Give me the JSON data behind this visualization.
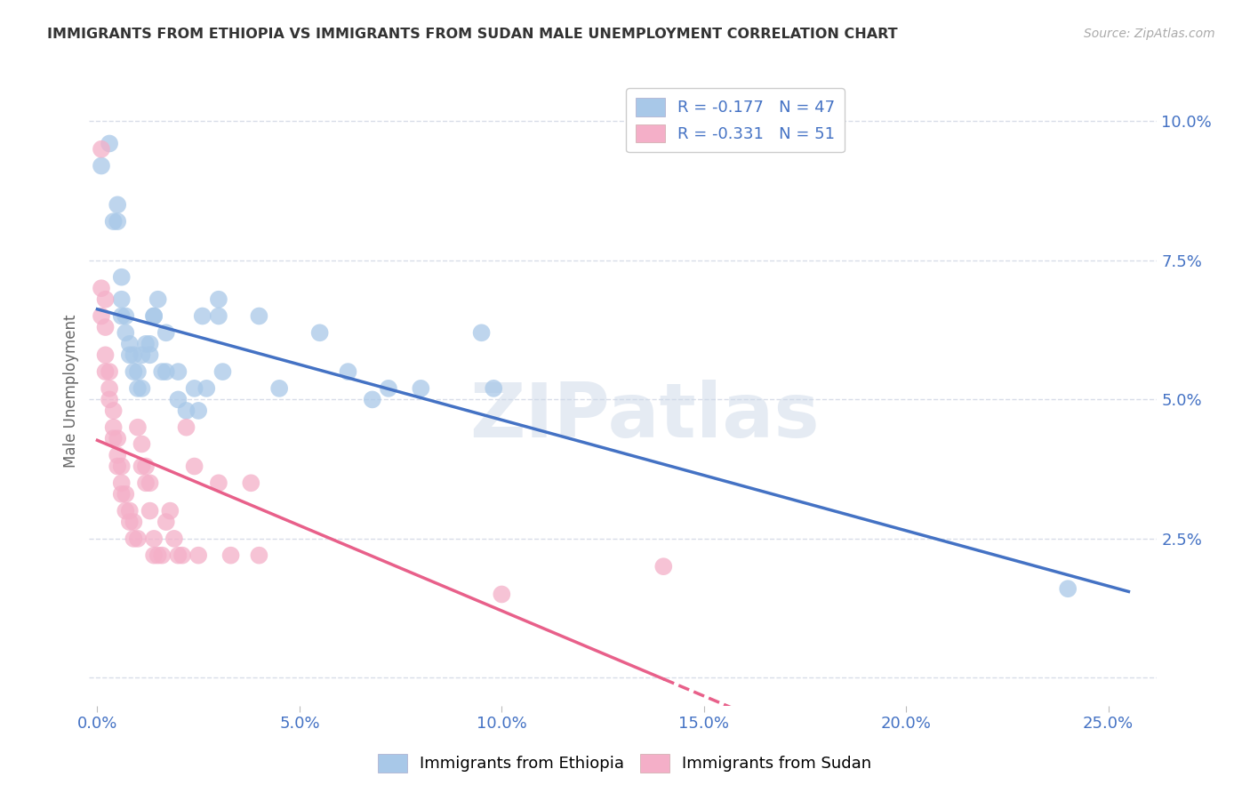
{
  "title": "IMMIGRANTS FROM ETHIOPIA VS IMMIGRANTS FROM SUDAN MALE UNEMPLOYMENT CORRELATION CHART",
  "source": "Source: ZipAtlas.com",
  "ylabel": "Male Unemployment",
  "xlim": [
    -0.002,
    0.262
  ],
  "ylim": [
    -0.005,
    0.108
  ],
  "x_ticks": [
    0.0,
    0.05,
    0.1,
    0.15,
    0.2,
    0.25
  ],
  "x_tick_labels": [
    "0.0%",
    "5.0%",
    "10.0%",
    "15.0%",
    "20.0%",
    "25.0%"
  ],
  "y_ticks": [
    0.0,
    0.025,
    0.05,
    0.075,
    0.1
  ],
  "y_tick_labels": [
    "",
    "2.5%",
    "5.0%",
    "7.5%",
    "10.0%"
  ],
  "legend_labels": [
    "Immigrants from Ethiopia",
    "Immigrants from Sudan"
  ],
  "legend_R": [
    -0.177,
    -0.331
  ],
  "legend_N": [
    47,
    51
  ],
  "ethiopia_color": "#a8c8e8",
  "sudan_color": "#f4afc8",
  "ethiopia_line_color": "#4472c4",
  "sudan_line_color": "#e8608a",
  "ethiopia_scatter": [
    [
      0.001,
      0.092
    ],
    [
      0.003,
      0.096
    ],
    [
      0.004,
      0.082
    ],
    [
      0.005,
      0.085
    ],
    [
      0.005,
      0.082
    ],
    [
      0.006,
      0.072
    ],
    [
      0.006,
      0.068
    ],
    [
      0.006,
      0.065
    ],
    [
      0.007,
      0.065
    ],
    [
      0.007,
      0.062
    ],
    [
      0.008,
      0.06
    ],
    [
      0.008,
      0.058
    ],
    [
      0.009,
      0.058
    ],
    [
      0.009,
      0.055
    ],
    [
      0.01,
      0.055
    ],
    [
      0.01,
      0.052
    ],
    [
      0.011,
      0.052
    ],
    [
      0.011,
      0.058
    ],
    [
      0.012,
      0.06
    ],
    [
      0.013,
      0.06
    ],
    [
      0.013,
      0.058
    ],
    [
      0.014,
      0.065
    ],
    [
      0.014,
      0.065
    ],
    [
      0.015,
      0.068
    ],
    [
      0.016,
      0.055
    ],
    [
      0.017,
      0.062
    ],
    [
      0.017,
      0.055
    ],
    [
      0.02,
      0.055
    ],
    [
      0.02,
      0.05
    ],
    [
      0.022,
      0.048
    ],
    [
      0.024,
      0.052
    ],
    [
      0.025,
      0.048
    ],
    [
      0.026,
      0.065
    ],
    [
      0.027,
      0.052
    ],
    [
      0.03,
      0.068
    ],
    [
      0.03,
      0.065
    ],
    [
      0.031,
      0.055
    ],
    [
      0.04,
      0.065
    ],
    [
      0.045,
      0.052
    ],
    [
      0.055,
      0.062
    ],
    [
      0.062,
      0.055
    ],
    [
      0.068,
      0.05
    ],
    [
      0.072,
      0.052
    ],
    [
      0.08,
      0.052
    ],
    [
      0.095,
      0.062
    ],
    [
      0.098,
      0.052
    ],
    [
      0.24,
      0.016
    ]
  ],
  "sudan_scatter": [
    [
      0.001,
      0.095
    ],
    [
      0.001,
      0.07
    ],
    [
      0.001,
      0.065
    ],
    [
      0.002,
      0.068
    ],
    [
      0.002,
      0.063
    ],
    [
      0.002,
      0.058
    ],
    [
      0.002,
      0.055
    ],
    [
      0.003,
      0.055
    ],
    [
      0.003,
      0.052
    ],
    [
      0.003,
      0.05
    ],
    [
      0.004,
      0.048
    ],
    [
      0.004,
      0.045
    ],
    [
      0.004,
      0.043
    ],
    [
      0.005,
      0.043
    ],
    [
      0.005,
      0.04
    ],
    [
      0.005,
      0.038
    ],
    [
      0.006,
      0.038
    ],
    [
      0.006,
      0.035
    ],
    [
      0.006,
      0.033
    ],
    [
      0.007,
      0.033
    ],
    [
      0.007,
      0.03
    ],
    [
      0.008,
      0.03
    ],
    [
      0.008,
      0.028
    ],
    [
      0.009,
      0.028
    ],
    [
      0.009,
      0.025
    ],
    [
      0.01,
      0.025
    ],
    [
      0.01,
      0.045
    ],
    [
      0.011,
      0.042
    ],
    [
      0.011,
      0.038
    ],
    [
      0.012,
      0.038
    ],
    [
      0.012,
      0.035
    ],
    [
      0.013,
      0.035
    ],
    [
      0.013,
      0.03
    ],
    [
      0.014,
      0.022
    ],
    [
      0.014,
      0.025
    ],
    [
      0.015,
      0.022
    ],
    [
      0.016,
      0.022
    ],
    [
      0.017,
      0.028
    ],
    [
      0.018,
      0.03
    ],
    [
      0.019,
      0.025
    ],
    [
      0.02,
      0.022
    ],
    [
      0.021,
      0.022
    ],
    [
      0.022,
      0.045
    ],
    [
      0.024,
      0.038
    ],
    [
      0.025,
      0.022
    ],
    [
      0.03,
      0.035
    ],
    [
      0.033,
      0.022
    ],
    [
      0.038,
      0.035
    ],
    [
      0.04,
      0.022
    ],
    [
      0.1,
      0.015
    ],
    [
      0.14,
      0.02
    ]
  ],
  "watermark_text": "ZIPatlas",
  "background_color": "#ffffff",
  "grid_color": "#d8dde8"
}
